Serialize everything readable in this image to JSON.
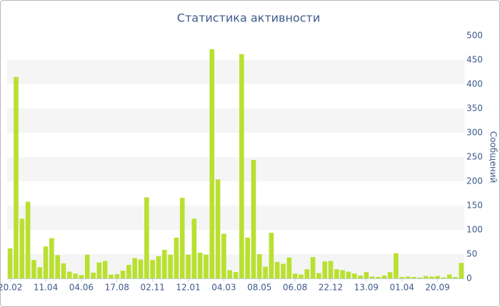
{
  "chart_data": {
    "type": "bar",
    "title": "Статистика активности",
    "y_axis_label": "Сообщений",
    "categories": [
      "20.02",
      null,
      null,
      null,
      null,
      null,
      "11.04",
      null,
      null,
      null,
      null,
      null,
      "04.06",
      null,
      null,
      null,
      null,
      null,
      "17.08",
      null,
      null,
      null,
      null,
      null,
      "02.11",
      null,
      null,
      null,
      null,
      null,
      "12.01",
      null,
      null,
      null,
      null,
      null,
      "04.03",
      null,
      null,
      null,
      null,
      null,
      "08.05",
      null,
      null,
      null,
      null,
      null,
      "06.08",
      null,
      null,
      null,
      null,
      null,
      "22.12",
      null,
      null,
      null,
      null,
      null,
      "13.09",
      null,
      null,
      null,
      null,
      null,
      "01.04",
      null,
      null,
      null,
      null,
      null,
      "20.09",
      null,
      null,
      null,
      null
    ],
    "values": [
      62,
      415,
      123,
      158,
      38,
      23,
      66,
      83,
      48,
      31,
      14,
      10,
      7,
      49,
      12,
      33,
      36,
      8,
      9,
      16,
      28,
      42,
      39,
      167,
      38,
      46,
      59,
      49,
      84,
      166,
      49,
      123,
      53,
      49,
      472,
      204,
      92,
      17,
      13,
      462,
      84,
      244,
      50,
      24,
      94,
      34,
      30,
      43,
      10,
      8,
      19,
      44,
      11,
      35,
      36,
      19,
      17,
      14,
      10,
      6,
      13,
      4,
      3,
      6,
      13,
      52,
      3,
      4,
      3,
      2,
      5,
      4,
      5,
      2,
      8,
      3,
      32
    ],
    "color": "#b9e031",
    "ylim": [
      0,
      500
    ],
    "yticks": [
      0,
      50,
      100,
      150,
      200,
      250,
      300,
      350,
      400,
      450,
      500
    ],
    "grid": true,
    "y_axis_side": "right"
  }
}
